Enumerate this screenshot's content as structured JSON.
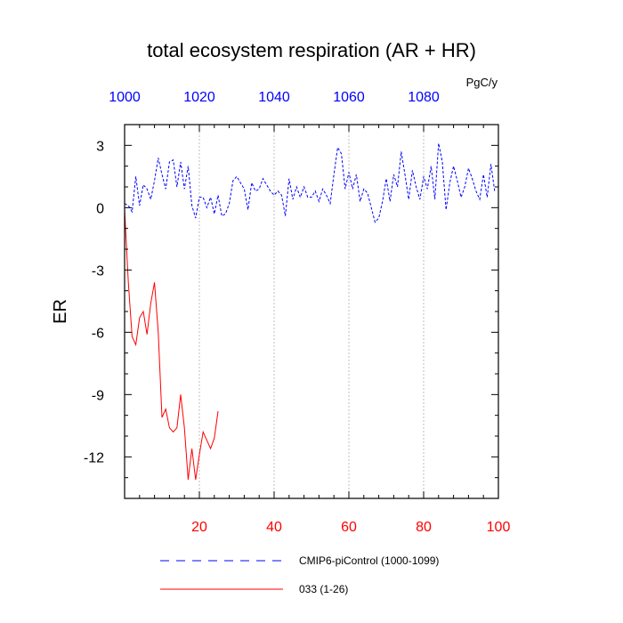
{
  "chart_data": {
    "type": "line",
    "title": "total ecosystem respiration (AR + HR)",
    "units": "PgC/y",
    "ylabel": "ER",
    "ylim": [
      -14,
      4
    ],
    "yticks": [
      3,
      0,
      -3,
      -6,
      -9,
      -12
    ],
    "ytick_labels": [
      "3",
      "0",
      "-3",
      "-6",
      "-9",
      "-12"
    ],
    "x_bottom": {
      "range": [
        0,
        100
      ],
      "ticks": [
        20,
        40,
        60,
        80,
        100
      ],
      "tick_labels": [
        "20",
        "40",
        "60",
        "80",
        "100"
      ],
      "color": "#ff0000"
    },
    "x_top": {
      "range": [
        1000,
        1100
      ],
      "ticks": [
        1000,
        1020,
        1040,
        1060,
        1080
      ],
      "tick_labels": [
        "1000",
        "1020",
        "1040",
        "1060",
        "1080"
      ],
      "color": "#0000ff"
    },
    "grid_x": [
      20,
      40,
      60,
      80
    ],
    "series": [
      {
        "name": "CMIP6-piControl (1000-1099)",
        "color": "#0000ff",
        "dash": "dashed",
        "axis": "top",
        "x_start": 1000,
        "values": [
          0.2,
          0.1,
          -0.2,
          1.5,
          0.1,
          1.1,
          0.9,
          0.4,
          1.3,
          2.4,
          1.6,
          0.9,
          2.2,
          2.3,
          1.0,
          2.2,
          0.9,
          2.0,
          0.1,
          -0.5,
          0.5,
          0.5,
          0.0,
          0.5,
          -0.3,
          0.6,
          -0.4,
          -0.3,
          0.2,
          1.3,
          1.5,
          1.2,
          0.9,
          -0.1,
          1.2,
          0.8,
          0.9,
          1.4,
          1.1,
          0.8,
          0.6,
          0.8,
          0.6,
          -0.4,
          1.4,
          0.4,
          1.0,
          0.5,
          1.0,
          0.5,
          0.5,
          0.8,
          0.3,
          0.9,
          0.6,
          0.2,
          1.6,
          2.9,
          2.6,
          0.9,
          1.7,
          0.9,
          1.6,
          0.3,
          0.9,
          0.7,
          0.0,
          -0.7,
          -0.5,
          0.3,
          1.4,
          0.3,
          1.6,
          1.0,
          2.7,
          1.6,
          0.4,
          1.8,
          1.0,
          0.4,
          1.5,
          0.9,
          2.0,
          0.4,
          3.1,
          2.2,
          -0.1,
          1.2,
          2.0,
          1.3,
          0.5,
          1.0,
          1.9,
          1.4,
          0.8,
          0.4,
          1.6,
          0.5,
          2.1,
          0.8
        ]
      },
      {
        "name": "033 (1-26)",
        "color": "#ff0000",
        "dash": "solid",
        "axis": "bottom",
        "x_start": 0,
        "values": [
          -0.1,
          -3.6,
          -6.2,
          -6.6,
          -5.3,
          -5.0,
          -6.1,
          -4.6,
          -3.6,
          -6.0,
          -10.1,
          -9.7,
          -10.6,
          -10.8,
          -10.6,
          -9.0,
          -10.6,
          -13.1,
          -11.6,
          -13.1,
          -11.9,
          -10.8,
          -11.2,
          -11.6,
          -11.1,
          -9.8
        ]
      }
    ],
    "legend": {
      "placement": "bottom",
      "entries": [
        "CMIP6-piControl (1000-1099)",
        "033 (1-26)"
      ]
    }
  }
}
